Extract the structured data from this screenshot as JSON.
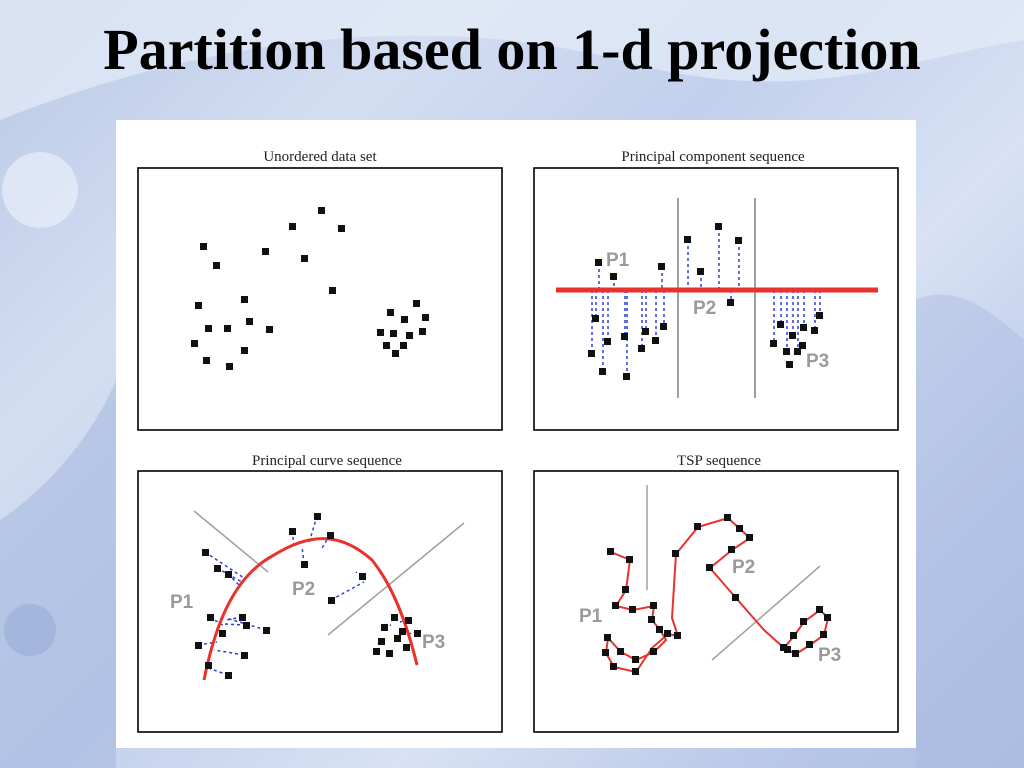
{
  "slide": {
    "title": "Partition based on 1-d projection"
  },
  "colors": {
    "curve": "#e8322b",
    "projection": "#2b3fd6",
    "divider": "#a0a0a0",
    "label": "#9a9a9a"
  },
  "panels": [
    {
      "caption": "Unordered data set"
    },
    {
      "caption": "Principal component sequence",
      "labels": [
        "P1",
        "P2",
        "P3"
      ]
    },
    {
      "caption": "Principal curve sequence",
      "labels": [
        "P1",
        "P2",
        "P3"
      ]
    },
    {
      "caption": "TSP sequence",
      "labels": [
        "P1",
        "P2",
        "P3"
      ]
    }
  ]
}
